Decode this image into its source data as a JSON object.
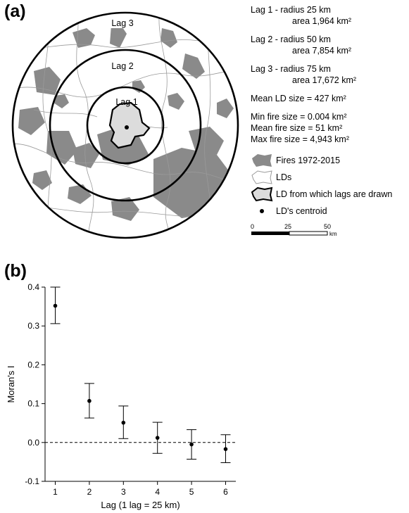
{
  "panel_a": {
    "label": "(a)",
    "ring_labels": [
      "Lag 1",
      "Lag 2",
      "Lag 3"
    ],
    "legend": {
      "lags": [
        {
          "line1": "Lag 1 - radius 25 km",
          "line2": "area 1,964 km²"
        },
        {
          "line1": "Lag 2 - radius 50 km",
          "line2": "area 7,854 km²"
        },
        {
          "line1": "Lag 3 - radius 75 km",
          "line2": "area 17,672 km²"
        }
      ],
      "mean_ld": "Mean LD size = 427 km²",
      "fire_stats": [
        "Min fire size = 0.004 km²",
        "Mean fire size = 51 km²",
        "Max fire size = 4,943 km²"
      ],
      "symbols": [
        {
          "icon": "fire-patch-icon",
          "label": "Fires 1972-2015"
        },
        {
          "icon": "ld-outline-icon",
          "label": "LDs"
        },
        {
          "icon": "ld-selected-icon",
          "label": "LD from which lags are drawn"
        },
        {
          "icon": "centroid-dot-icon",
          "label": "LD's centroid"
        }
      ],
      "scale": {
        "ticks": [
          "0",
          "25",
          "50"
        ],
        "unit": "km"
      }
    }
  },
  "panel_b": {
    "label": "(b)"
  },
  "chart_data": {
    "type": "scatter",
    "title": "",
    "xlabel": "Lag (1 lag = 25 km)",
    "ylabel": "Moran's I",
    "x": [
      1,
      2,
      3,
      4,
      5,
      6
    ],
    "y": [
      0.352,
      0.107,
      0.051,
      0.012,
      -0.005,
      -0.017
    ],
    "y_lower": [
      0.306,
      0.063,
      0.01,
      -0.028,
      -0.043,
      -0.052
    ],
    "y_upper": [
      0.4,
      0.152,
      0.094,
      0.052,
      0.033,
      0.02
    ],
    "xlim": [
      0.7,
      6.3
    ],
    "ylim": [
      -0.1,
      0.4
    ],
    "xticks": [
      "1",
      "2",
      "3",
      "4",
      "5",
      "6"
    ],
    "yticks": [
      "-0.1",
      "0.0",
      "0.1",
      "0.2",
      "0.3",
      "0.4"
    ],
    "reference_line": 0,
    "grid": false,
    "colors": {
      "points": "#000000",
      "fires": "#8a8a8a",
      "ld_fill": "#dcdcdc"
    }
  }
}
